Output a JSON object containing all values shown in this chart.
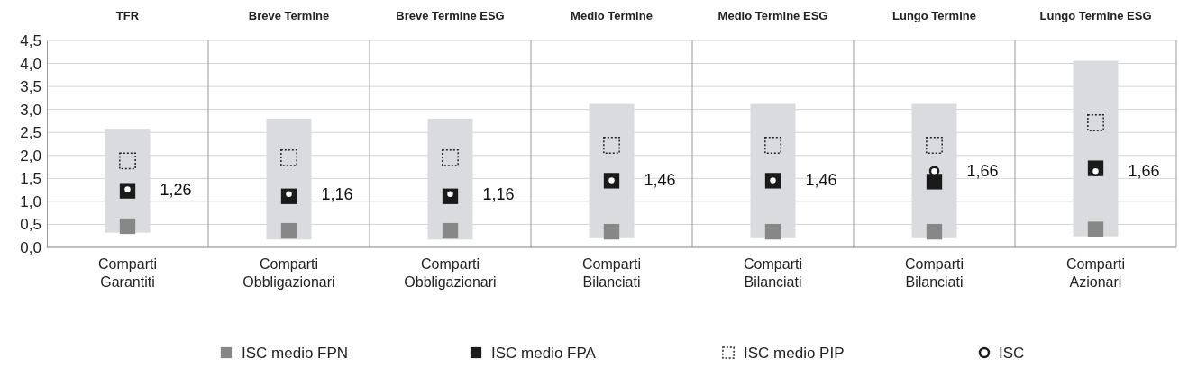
{
  "chart_data": {
    "type": "bar",
    "categories": [
      "Comparti Garantiti",
      "Comparti Obbligazionari",
      "Comparti Obbligazionari",
      "Comparti Bilanciati",
      "Comparti Bilanciati",
      "Comparti Bilanciati",
      "Comparti Azionari"
    ],
    "annotations": [
      "TFR",
      "Breve Termine",
      "Breve Termine ESG",
      "Medio Termine",
      "Medio Termine ESG",
      "Lungo Termine",
      "Lungo Termine ESG"
    ],
    "ylim": [
      0,
      4.5
    ],
    "yticks": [
      {
        "value": 0,
        "label": "0,0"
      },
      {
        "value": 0.5,
        "label": "0,5"
      },
      {
        "value": 1,
        "label": "1,0"
      },
      {
        "value": 1.5,
        "label": "1,5"
      },
      {
        "value": 2,
        "label": "2,0"
      },
      {
        "value": 2.5,
        "label": "2,5"
      },
      {
        "value": 3,
        "label": "3,0"
      },
      {
        "value": 3.5,
        "label": "3,5"
      },
      {
        "value": 4,
        "label": "4,0"
      },
      {
        "value": 4.5,
        "label": "4,5"
      }
    ],
    "grid": "y",
    "legend": "bottom",
    "series": [
      {
        "color": "#dadbde",
        "base": [
          0.32,
          0.17,
          0.17,
          0.2,
          0.2,
          0.2,
          0.24
        ],
        "values": [
          2.26,
          2.63,
          2.63,
          2.92,
          2.92,
          2.92,
          3.82
        ]
      },
      {
        "type": "scatter",
        "name": "ISC medio FPN",
        "color": "#878787",
        "marker": "square",
        "values": [
          0.46,
          0.36,
          0.36,
          0.34,
          0.34,
          0.34,
          0.39
        ]
      },
      {
        "type": "scatter",
        "name": "ISC medio FPA",
        "color": "#1a1a1a",
        "marker": "square",
        "values": [
          1.23,
          1.11,
          1.11,
          1.45,
          1.45,
          1.43,
          1.72
        ]
      },
      {
        "type": "scatter",
        "name": "ISC medio PIP",
        "color": "#222222",
        "marker": "square",
        "line_style": "dotted",
        "values": [
          1.88,
          1.95,
          1.95,
          2.22,
          2.22,
          2.22,
          2.71
        ]
      },
      {
        "type": "scatter",
        "name": "ISC",
        "color": "#1a1a1a",
        "marker": "circle",
        "values": [
          1.26,
          1.16,
          1.16,
          1.46,
          1.46,
          1.66,
          1.66
        ],
        "value_labels": [
          "1,26",
          "1,16",
          "1,16",
          "1,46",
          "1,46",
          "1,66",
          "1,66"
        ]
      }
    ]
  }
}
